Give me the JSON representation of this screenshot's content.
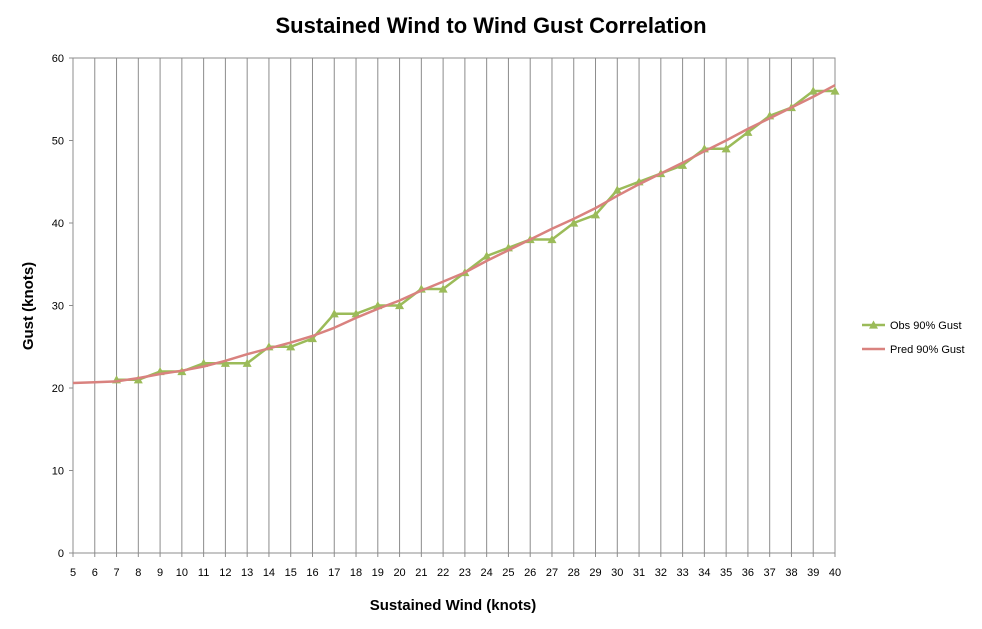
{
  "chart_data": {
    "type": "line",
    "title": "Sustained Wind to Wind Gust Correlation",
    "xlabel": "Sustained Wind (knots)",
    "ylabel": "Gust (knots)",
    "x": [
      5,
      6,
      7,
      8,
      9,
      10,
      11,
      12,
      13,
      14,
      15,
      16,
      17,
      18,
      19,
      20,
      21,
      22,
      23,
      24,
      25,
      26,
      27,
      28,
      29,
      30,
      31,
      32,
      33,
      34,
      35,
      36,
      37,
      38,
      39,
      40
    ],
    "xticks": [
      "5",
      "6",
      "7",
      "8",
      "9",
      "10",
      "11",
      "12",
      "13",
      "14",
      "15",
      "16",
      "17",
      "18",
      "19",
      "20",
      "21",
      "22",
      "23",
      "24",
      "25",
      "26",
      "27",
      "28",
      "29",
      "30",
      "31",
      "32",
      "33",
      "34",
      "35",
      "36",
      "37",
      "38",
      "39",
      "40"
    ],
    "ylim": [
      0,
      60
    ],
    "yticks": [
      "0",
      "10",
      "20",
      "30",
      "40",
      "50",
      "60"
    ],
    "grid": {
      "vertical": true,
      "horizontal": false
    },
    "legend_position": "right",
    "series": [
      {
        "name": "Obs 90% Gust",
        "color": "#9BBB59",
        "marker": "triangle",
        "values": [
          null,
          null,
          21,
          21,
          22,
          22,
          23,
          23,
          23,
          25,
          25,
          26,
          29,
          29,
          30,
          30,
          32,
          32,
          34,
          36,
          37,
          38,
          38,
          40,
          41,
          44,
          45,
          46,
          47,
          49,
          49,
          51,
          53,
          54,
          56,
          56
        ]
      },
      {
        "name": "Pred 90% Gust",
        "color": "#D9827F",
        "marker": "none",
        "values": [
          20.6,
          20.7,
          20.8,
          21.2,
          21.7,
          22.1,
          22.6,
          23.3,
          24.1,
          24.8,
          25.5,
          26.3,
          27.3,
          28.5,
          29.6,
          30.6,
          31.8,
          32.9,
          34.0,
          35.4,
          36.7,
          38.0,
          39.3,
          40.5,
          41.8,
          43.3,
          44.7,
          46.0,
          47.3,
          48.7,
          50.0,
          51.4,
          52.7,
          54.0,
          55.3,
          56.7
        ]
      }
    ]
  }
}
